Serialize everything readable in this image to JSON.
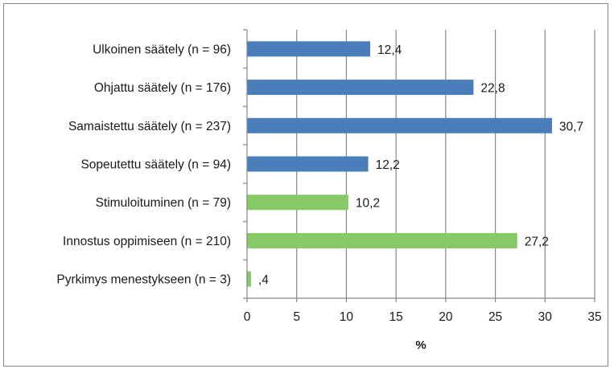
{
  "chart_data": {
    "type": "bar",
    "orientation": "horizontal",
    "categories": [
      "Ulkoinen säätely (n = 96)",
      "Ohjattu säätely (n = 176)",
      "Samaistettu säätely (n = 237)",
      "Sopeutettu säätely (n = 94)",
      "Stimuloituminen (n = 79)",
      "Innostus oppimiseen (n = 210)",
      "Pyrkimys menestykseen (n = 3)"
    ],
    "values": [
      12.4,
      22.8,
      30.7,
      12.2,
      10.2,
      27.2,
      0.4
    ],
    "data_labels": [
      "12,4",
      "22,8",
      "30,7",
      "12,2",
      "10,2",
      "27,2",
      ",4"
    ],
    "bar_colors": [
      "#4a7ebb",
      "#4a7ebb",
      "#4a7ebb",
      "#4a7ebb",
      "#86c966",
      "#86c966",
      "#86c966"
    ],
    "xlim": [
      0,
      35
    ],
    "xticks": [
      0,
      5,
      10,
      15,
      20,
      25,
      30,
      35
    ],
    "xlabel": "%",
    "title": "",
    "ylabel": "",
    "grid": "vertical",
    "legend": "none"
  }
}
